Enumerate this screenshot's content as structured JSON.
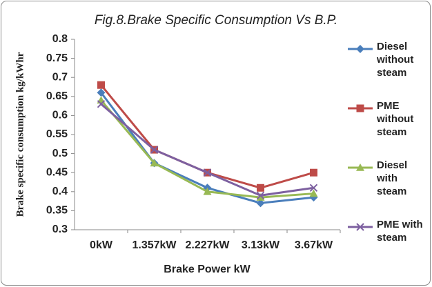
{
  "chart_data": {
    "type": "line",
    "title": "Fig.8.Brake Specific Consumption Vs B.P.",
    "xlabel": "Brake Power kW",
    "ylabel": "Brake specific consumption kg/kWhr",
    "categories": [
      "0kW",
      "1.357kW",
      "2.227kW",
      "3.13kW",
      "3.67kW"
    ],
    "series": [
      {
        "name": "Diesel without steam",
        "color": "#4a7ebb",
        "marker": "diamond",
        "values": [
          0.66,
          0.475,
          0.41,
          0.37,
          0.385
        ]
      },
      {
        "name": "PME without steam",
        "color": "#be4b48",
        "marker": "square",
        "values": [
          0.68,
          0.51,
          0.45,
          0.41,
          0.45
        ]
      },
      {
        "name": "Diesel with steam",
        "color": "#98b954",
        "marker": "triangle",
        "values": [
          0.64,
          0.475,
          0.4,
          0.385,
          0.395
        ]
      },
      {
        "name": "PME with steam",
        "color": "#7d60a0",
        "marker": "x",
        "values": [
          0.63,
          0.51,
          0.45,
          0.39,
          0.41
        ]
      }
    ],
    "ylim": [
      0.3,
      0.8
    ],
    "yticks": [
      0.3,
      0.35,
      0.4,
      0.45,
      0.5,
      0.55,
      0.6,
      0.65,
      0.7,
      0.75,
      0.8
    ],
    "grid": false,
    "legend": "right"
  }
}
